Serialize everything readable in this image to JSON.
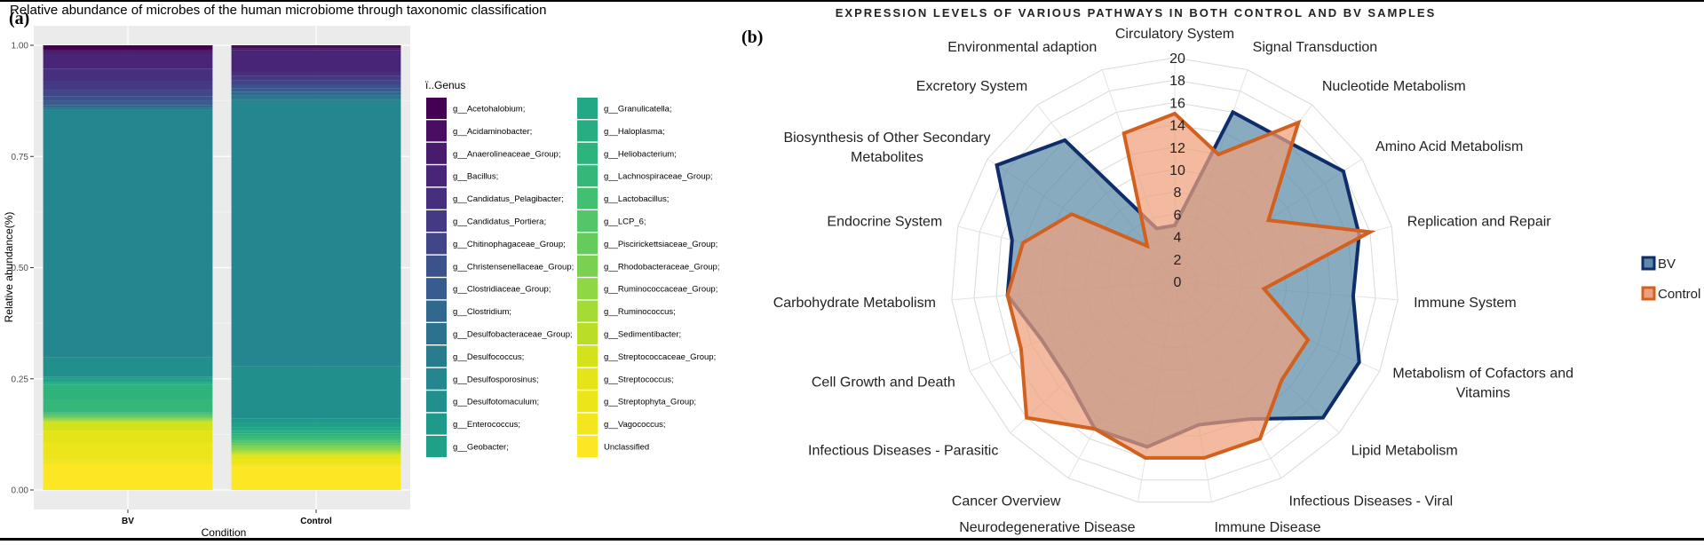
{
  "panel_a": {
    "label": "(a)",
    "chart_data": {
      "type": "bar",
      "stacked": true,
      "title": "Relative abundance of microbes of the human microbiome through taxonomic classification",
      "xlabel": "Condition",
      "ylabel": "Relative abundance(%)",
      "ylim": [
        0,
        1
      ],
      "yticks": [
        "0.00",
        "0.25",
        "0.50",
        "0.75",
        "1.00"
      ],
      "categories": [
        "BV",
        "Control"
      ],
      "legend_title": "ï..Genus",
      "legend_position": "right",
      "series": [
        {
          "name": "g__Acetohalobium;",
          "color": "#440154",
          "values": [
            0.012,
            0.004
          ]
        },
        {
          "name": "g__Acidaminobacter;",
          "color": "#470E61",
          "values": [
            0.004,
            0.004
          ]
        },
        {
          "name": "g__Anaerolineaceae_Group;",
          "color": "#481B6D",
          "values": [
            0.004,
            0.004
          ]
        },
        {
          "name": "g__Bacillus;",
          "color": "#482576",
          "values": [
            0.035,
            0.05
          ]
        },
        {
          "name": "g__Candidatus_Pelagibacter;",
          "color": "#46307E",
          "values": [
            0.03,
            0.01
          ]
        },
        {
          "name": "g__Candidatus_Portiera;",
          "color": "#443A83",
          "values": [
            0.02,
            0.01
          ]
        },
        {
          "name": "g__Chitinophagaceae_Group;",
          "color": "#404688",
          "values": [
            0.015,
            0.01
          ]
        },
        {
          "name": "g__Christensenellaceae_Group;",
          "color": "#3B528B",
          "values": [
            0.012,
            0.008
          ]
        },
        {
          "name": "g__Clostridiaceae_Group;",
          "color": "#365D8D",
          "values": [
            0.01,
            0.008
          ]
        },
        {
          "name": "g__Clostridium;",
          "color": "#31688E",
          "values": [
            0.005,
            0.008
          ]
        },
        {
          "name": "g__Desulfobacteraceae_Group;",
          "color": "#2C728E",
          "values": [
            0.003,
            0.006
          ]
        },
        {
          "name": "g__Desulfococcus;",
          "color": "#287C8E",
          "values": [
            0.003,
            0.006
          ]
        },
        {
          "name": "g__Desulfosporosinus;",
          "color": "#24868E",
          "values": [
            0.585,
            0.62
          ]
        },
        {
          "name": "g__Desulfotomaculum;",
          "color": "#21908C",
          "values": [
            0.045,
            0.122
          ]
        },
        {
          "name": "g__Enterococcus;",
          "color": "#1F9A8A",
          "values": [
            0.005,
            0.01
          ]
        },
        {
          "name": "g__Geobacter;",
          "color": "#1FA187",
          "values": [
            0.005,
            0.01
          ]
        },
        {
          "name": "g__Granulicatella;",
          "color": "#22A884",
          "values": [
            0.005,
            0.008
          ]
        },
        {
          "name": "g__Haloplasma;",
          "color": "#27AD81",
          "values": [
            0.005,
            0.006
          ]
        },
        {
          "name": "g__Heliobacterium;",
          "color": "#2EB37C",
          "values": [
            0.035,
            0.006
          ]
        },
        {
          "name": "g__Lachnospiraceae_Group;",
          "color": "#35B779",
          "values": [
            0.03,
            0.006
          ]
        },
        {
          "name": "g__Lactobacillus;",
          "color": "#43BF71",
          "values": [
            0.004,
            0.006
          ]
        },
        {
          "name": "g__LCP_6;",
          "color": "#54C568",
          "values": [
            0.004,
            0.006
          ]
        },
        {
          "name": "g__Piscirickettsiaceae_Group;",
          "color": "#66CB5D",
          "values": [
            0.003,
            0.005
          ]
        },
        {
          "name": "g__Rhodobacteraceae_Group;",
          "color": "#7AD151",
          "values": [
            0.003,
            0.005
          ]
        },
        {
          "name": "g__Ruminococcaceae_Group;",
          "color": "#8FD744",
          "values": [
            0.003,
            0.005
          ]
        },
        {
          "name": "g__Ruminococcus;",
          "color": "#A5DB36",
          "values": [
            0.003,
            0.004
          ]
        },
        {
          "name": "g__Sedimentibacter;",
          "color": "#BADE28",
          "values": [
            0.003,
            0.004
          ]
        },
        {
          "name": "g__Streptococcaceae_Group;",
          "color": "#D2E21B",
          "values": [
            0.02,
            0.004
          ]
        },
        {
          "name": "g__Streptococcus;",
          "color": "#E5E419",
          "values": [
            0.03,
            0.01
          ]
        },
        {
          "name": "g__Streptophyta_Group;",
          "color": "#EBE51A",
          "values": [
            0.04,
            0.01
          ]
        },
        {
          "name": "g__Vagococcus;",
          "color": "#F4E61E",
          "values": [
            0.01,
            0.005
          ]
        },
        {
          "name": "Unclassified",
          "color": "#FDE725",
          "values": [
            0.06,
            0.056
          ]
        }
      ]
    }
  },
  "panel_b": {
    "label": "(b)",
    "chart_data": {
      "type": "radar",
      "title": "EXPRESSION LEVELS OF VARIOUS PATHWAYS IN BOTH CONTROL AND BV SAMPLES",
      "rlim": [
        0,
        20
      ],
      "rticks": [
        "0",
        "2",
        "4",
        "6",
        "8",
        "10",
        "12",
        "14",
        "16",
        "18",
        "20"
      ],
      "legend_position": "right",
      "categories": [
        "Circulatory System",
        "Signal Transduction",
        "Nucleotide Metabolism",
        "Amino Acid Metabolism",
        "Replication and Repair",
        "Immune System",
        "Metabolism of Cofactors and Vitamins",
        "Lipid Metabolism",
        "Infectious Diseases - Viral",
        "Immune Disease",
        "Neurodegenerative Disease",
        "Cancer Overview",
        "Infectious Diseases - Parasitic",
        "Cell Growth and Death",
        "Carbohydrate Metabolism",
        "Endocrine System",
        "Biosynthesis of Other Secondary Metabolites",
        "Excretory System",
        "Environmental adaption"
      ],
      "series": [
        {
          "name": "BV",
          "color": "#0F2C6B",
          "fill": "#5B8BA8",
          "values": [
            5,
            16,
            16,
            18,
            17,
            16,
            18,
            18,
            14,
            13,
            15,
            15,
            13,
            13,
            15,
            15,
            19,
            16,
            5
          ]
        },
        {
          "name": "Control",
          "color": "#D2601E",
          "fill": "#EE9F7C",
          "values": [
            15,
            12,
            18,
            10,
            18,
            8,
            13,
            13,
            16,
            16,
            16,
            15,
            18,
            15,
            15,
            14,
            11,
            4,
            14
          ]
        }
      ]
    }
  }
}
